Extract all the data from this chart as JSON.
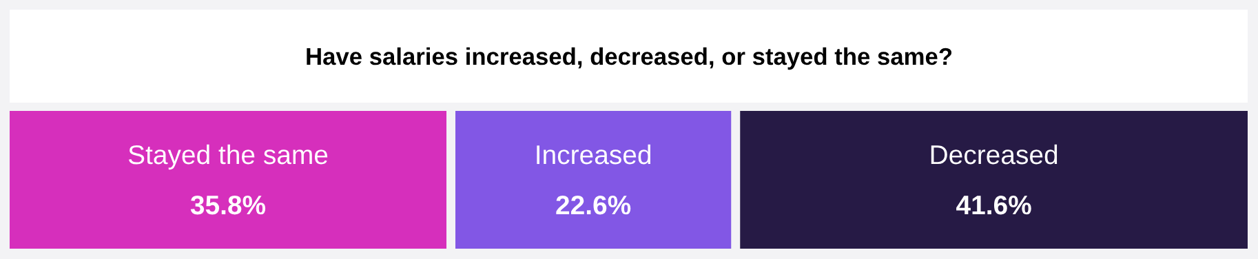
{
  "chart_data": {
    "type": "other",
    "title": "Have salaries increased, decreased, or stayed the same?",
    "categories": [
      "Stayed the same",
      "Increased",
      "Decreased"
    ],
    "values": [
      35.8,
      22.6,
      41.6
    ],
    "colors": [
      "#d62fbc",
      "#8257e5",
      "#261a45"
    ],
    "value_labels": [
      "35.8%",
      "22.6%",
      "41.6%"
    ]
  }
}
